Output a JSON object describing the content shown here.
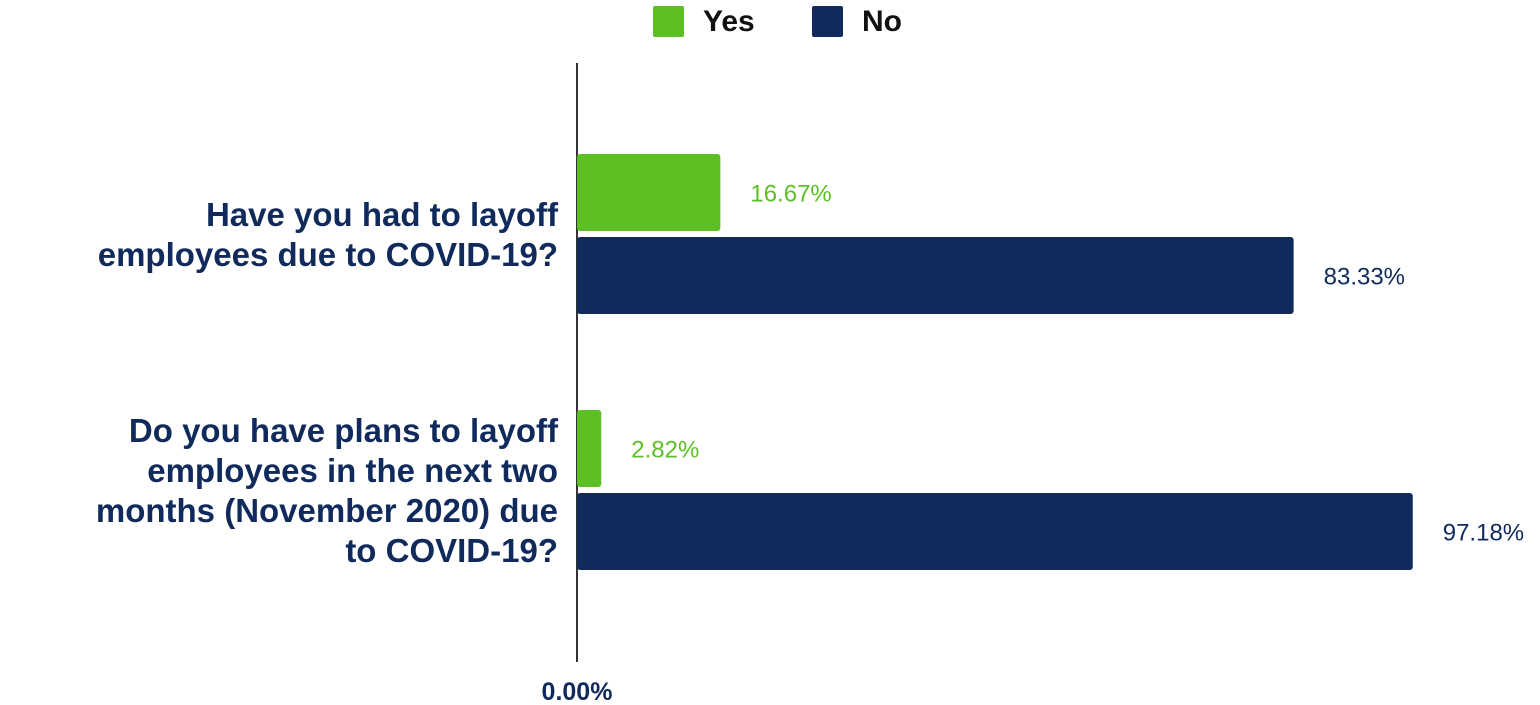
{
  "chart_data": {
    "type": "bar",
    "orientation": "horizontal",
    "categories": [
      [
        "Have you had to layoff",
        "employees due to COVID-19?"
      ],
      [
        "Do you have plans to layoff",
        "employees in the next two",
        "months (November 2020) due",
        "to COVID-19?"
      ]
    ],
    "series": [
      {
        "name": "Yes",
        "color": "#5cbf24",
        "values": [
          16.67,
          2.82
        ],
        "labels": [
          "16.67%",
          "2.82%"
        ]
      },
      {
        "name": "No",
        "color": "#102a5c",
        "values": [
          83.33,
          97.18
        ],
        "labels": [
          "83.33%",
          "97.18%"
        ]
      }
    ],
    "xlim": [
      0,
      100
    ],
    "x_tick_labels": [
      "0.00%"
    ],
    "grid": false,
    "legend": "top-center",
    "title": "",
    "xlabel": "",
    "ylabel": ""
  }
}
